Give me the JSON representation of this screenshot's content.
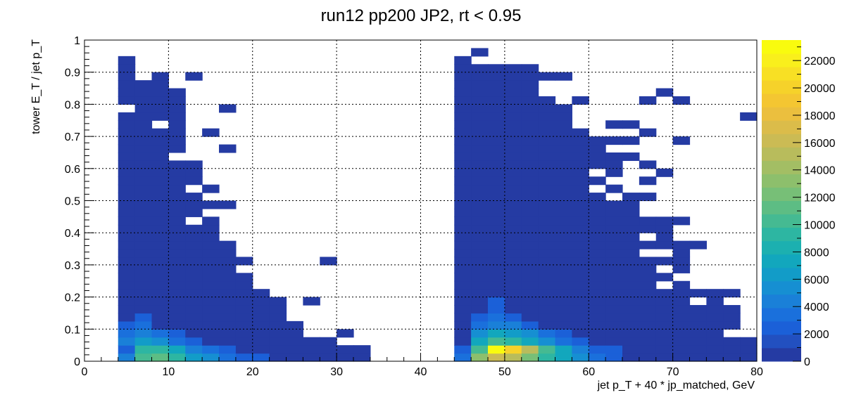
{
  "chart_data": {
    "type": "heatmap",
    "title": "run12 pp200 JP2, rt < 0.95",
    "xlabel": "jet p_T + 40 * jp_matched, GeV",
    "ylabel": "tower E_T / jet p_T",
    "xlim": [
      0,
      80
    ],
    "ylim": [
      0,
      1
    ],
    "x_ticks": [
      "0",
      "10",
      "20",
      "30",
      "40",
      "50",
      "60",
      "70",
      "80"
    ],
    "y_ticks": [
      "0",
      "0.1",
      "0.2",
      "0.3",
      "0.4",
      "0.5",
      "0.6",
      "0.7",
      "0.8",
      "0.9",
      "1"
    ],
    "grid": true,
    "colorbar": {
      "range": [
        0,
        23500
      ],
      "ticks": [
        "0",
        "2000",
        "4000",
        "6000",
        "8000",
        "10000",
        "12000",
        "14000",
        "16000",
        "18000",
        "20000",
        "22000"
      ],
      "palette": [
        "#253ba3",
        "#2250c0",
        "#1b60d8",
        "#1a70dc",
        "#1a80d8",
        "#168fd2",
        "#129cc8",
        "#12a7bd",
        "#1cb0b0",
        "#2db6a2",
        "#45ba92",
        "#5dbd84",
        "#77bf77",
        "#8dbf6c",
        "#a3be64",
        "#b8bc5c",
        "#cbbb54",
        "#dbbc4a",
        "#ebbf3e",
        "#f4c632",
        "#f6d22a",
        "#f8e024",
        "#f9ef1c",
        "#f9fb0e"
      ]
    },
    "bin_width_x": 2,
    "bin_width_y": 0.025,
    "columns": [
      {
        "x0": 4,
        "ymax": 0.95,
        "gaps": [
          0.775
        ]
      },
      {
        "x0": 6,
        "ymax": 0.875,
        "gaps": []
      },
      {
        "x0": 8,
        "ymax": 0.875,
        "gaps": [
          0.725
        ]
      },
      {
        "x0": 10,
        "ymax": 0.85,
        "gaps": [
          0.625
        ]
      },
      {
        "x0": 12,
        "ymax": 0.625,
        "gaps": [
          0.425,
          0.525
        ]
      },
      {
        "x0": 14,
        "ymax": 0.55,
        "gaps": [
          0.45,
          0.5
        ]
      },
      {
        "x0": 16,
        "ymax": 0.375,
        "gaps": []
      },
      {
        "x0": 18,
        "ymax": 0.275,
        "gaps": []
      },
      {
        "x0": 20,
        "ymax": 0.225,
        "gaps": []
      },
      {
        "x0": 22,
        "ymax": 0.2,
        "gaps": []
      },
      {
        "x0": 24,
        "ymax": 0.125,
        "gaps": []
      },
      {
        "x0": 26,
        "ymax": 0.075,
        "gaps": []
      },
      {
        "x0": 28,
        "ymax": 0.075,
        "gaps": []
      },
      {
        "x0": 30,
        "ymax": 0.05,
        "gaps": []
      },
      {
        "x0": 32,
        "ymax": 0.05,
        "gaps": []
      },
      {
        "x0": 44,
        "ymax": 0.95,
        "gaps": []
      },
      {
        "x0": 46,
        "ymax": 0.925,
        "gaps": []
      },
      {
        "x0": 48,
        "ymax": 0.925,
        "gaps": []
      },
      {
        "x0": 50,
        "ymax": 0.925,
        "gaps": []
      },
      {
        "x0": 52,
        "ymax": 0.9,
        "gaps": []
      },
      {
        "x0": 54,
        "ymax": 0.825,
        "gaps": []
      },
      {
        "x0": 56,
        "ymax": 0.8,
        "gaps": []
      },
      {
        "x0": 58,
        "ymax": 0.725,
        "gaps": []
      },
      {
        "x0": 60,
        "ymax": 0.7,
        "gaps": [
          0.525,
          0.575
        ]
      },
      {
        "x0": 62,
        "ymax": 0.65,
        "gaps": [
          0.5,
          0.55
        ]
      },
      {
        "x0": 64,
        "ymax": 0.525,
        "gaps": [
          0.425
        ]
      },
      {
        "x0": 66,
        "ymax": 0.45,
        "gaps": [
          0.325,
          0.375
        ]
      },
      {
        "x0": 68,
        "ymax": 0.45,
        "gaps": [
          0.225,
          0.275,
          0.325
        ]
      },
      {
        "x0": 70,
        "ymax": 0.35,
        "gaps": [
          0.25
        ]
      },
      {
        "x0": 72,
        "ymax": 0.225,
        "gaps": [
          0.175
        ]
      },
      {
        "x0": 74,
        "ymax": 0.2,
        "gaps": [
          0.15
        ]
      },
      {
        "x0": 76,
        "ymax": 0.175,
        "gaps": [
          0.075
        ]
      },
      {
        "x0": 78,
        "ymax": 0.075,
        "gaps": []
      }
    ],
    "islands": [
      {
        "x": 8,
        "y": 0.875
      },
      {
        "x": 12,
        "y": 0.875
      },
      {
        "x": 10,
        "y": 0.8
      },
      {
        "x": 16,
        "y": 0.775
      },
      {
        "x": 14,
        "y": 0.7
      },
      {
        "x": 16,
        "y": 0.65
      },
      {
        "x": 16,
        "y": 0.475
      },
      {
        "x": 14,
        "y": 0.375
      },
      {
        "x": 18,
        "y": 0.3
      },
      {
        "x": 22,
        "y": 0.175
      },
      {
        "x": 26,
        "y": 0.175
      },
      {
        "x": 28,
        "y": 0.3
      },
      {
        "x": 30,
        "y": 0.075
      },
      {
        "x": 46,
        "y": 0.95
      },
      {
        "x": 52,
        "y": 0.9
      },
      {
        "x": 54,
        "y": 0.875
      },
      {
        "x": 56,
        "y": 0.875
      },
      {
        "x": 58,
        "y": 0.8
      },
      {
        "x": 62,
        "y": 0.725
      },
      {
        "x": 64,
        "y": 0.725
      },
      {
        "x": 62,
        "y": 0.675
      },
      {
        "x": 64,
        "y": 0.675
      },
      {
        "x": 66,
        "y": 0.7
      },
      {
        "x": 66,
        "y": 0.6
      },
      {
        "x": 64,
        "y": 0.625
      },
      {
        "x": 64,
        "y": 0.5
      },
      {
        "x": 66,
        "y": 0.55
      },
      {
        "x": 66,
        "y": 0.5
      },
      {
        "x": 64,
        "y": 0.425
      },
      {
        "x": 68,
        "y": 0.425
      },
      {
        "x": 70,
        "y": 0.425
      },
      {
        "x": 68,
        "y": 0.575
      },
      {
        "x": 70,
        "y": 0.8
      },
      {
        "x": 66,
        "y": 0.8
      },
      {
        "x": 68,
        "y": 0.825
      },
      {
        "x": 70,
        "y": 0.675
      },
      {
        "x": 70,
        "y": 0.35
      },
      {
        "x": 72,
        "y": 0.35
      },
      {
        "x": 72,
        "y": 0.2
      },
      {
        "x": 74,
        "y": 0.2
      },
      {
        "x": 74,
        "y": 0.15
      },
      {
        "x": 76,
        "y": 0.15
      },
      {
        "x": 76,
        "y": 0.2
      },
      {
        "x": 78,
        "y": 0.75
      }
    ],
    "hot_cells": [
      {
        "x": 4,
        "y": 0.0,
        "v": 4000
      },
      {
        "x": 4,
        "y": 0.025,
        "v": 2000
      },
      {
        "x": 4,
        "y": 0.05,
        "v": 4500
      },
      {
        "x": 4,
        "y": 0.075,
        "v": 3500
      },
      {
        "x": 4,
        "y": 0.1,
        "v": 2200
      },
      {
        "x": 6,
        "y": 0.0,
        "v": 10500
      },
      {
        "x": 6,
        "y": 0.025,
        "v": 9500
      },
      {
        "x": 6,
        "y": 0.05,
        "v": 6500
      },
      {
        "x": 6,
        "y": 0.075,
        "v": 4500
      },
      {
        "x": 6,
        "y": 0.1,
        "v": 3000
      },
      {
        "x": 6,
        "y": 0.125,
        "v": 2000
      },
      {
        "x": 8,
        "y": 0.0,
        "v": 11000
      },
      {
        "x": 8,
        "y": 0.025,
        "v": 9000
      },
      {
        "x": 8,
        "y": 0.05,
        "v": 5500
      },
      {
        "x": 8,
        "y": 0.075,
        "v": 3000
      },
      {
        "x": 10,
        "y": 0.0,
        "v": 9000
      },
      {
        "x": 10,
        "y": 0.025,
        "v": 7000
      },
      {
        "x": 10,
        "y": 0.05,
        "v": 3500
      },
      {
        "x": 10,
        "y": 0.075,
        "v": 2000
      },
      {
        "x": 12,
        "y": 0.0,
        "v": 6500
      },
      {
        "x": 12,
        "y": 0.025,
        "v": 4500
      },
      {
        "x": 12,
        "y": 0.05,
        "v": 2200
      },
      {
        "x": 14,
        "y": 0.0,
        "v": 5000
      },
      {
        "x": 14,
        "y": 0.025,
        "v": 3000
      },
      {
        "x": 16,
        "y": 0.0,
        "v": 3500
      },
      {
        "x": 16,
        "y": 0.025,
        "v": 2200
      },
      {
        "x": 18,
        "y": 0.0,
        "v": 2500
      },
      {
        "x": 20,
        "y": 0.0,
        "v": 2000
      },
      {
        "x": 44,
        "y": 0.0,
        "v": 3500
      },
      {
        "x": 44,
        "y": 0.025,
        "v": 2500
      },
      {
        "x": 46,
        "y": 0.0,
        "v": 13000
      },
      {
        "x": 46,
        "y": 0.025,
        "v": 10000
      },
      {
        "x": 46,
        "y": 0.05,
        "v": 7000
      },
      {
        "x": 46,
        "y": 0.075,
        "v": 5000
      },
      {
        "x": 46,
        "y": 0.1,
        "v": 3500
      },
      {
        "x": 46,
        "y": 0.125,
        "v": 2200
      },
      {
        "x": 48,
        "y": 0.0,
        "v": 16000
      },
      {
        "x": 48,
        "y": 0.025,
        "v": 23500
      },
      {
        "x": 48,
        "y": 0.05,
        "v": 10000
      },
      {
        "x": 48,
        "y": 0.075,
        "v": 7000
      },
      {
        "x": 48,
        "y": 0.1,
        "v": 4500
      },
      {
        "x": 48,
        "y": 0.125,
        "v": 3000
      },
      {
        "x": 48,
        "y": 0.15,
        "v": 2200
      },
      {
        "x": 48,
        "y": 0.175,
        "v": 2000
      },
      {
        "x": 50,
        "y": 0.0,
        "v": 15000
      },
      {
        "x": 50,
        "y": 0.025,
        "v": 20500
      },
      {
        "x": 50,
        "y": 0.05,
        "v": 9500
      },
      {
        "x": 50,
        "y": 0.075,
        "v": 6000
      },
      {
        "x": 50,
        "y": 0.1,
        "v": 4000
      },
      {
        "x": 50,
        "y": 0.125,
        "v": 2200
      },
      {
        "x": 52,
        "y": 0.0,
        "v": 12000
      },
      {
        "x": 52,
        "y": 0.025,
        "v": 15000
      },
      {
        "x": 52,
        "y": 0.05,
        "v": 7500
      },
      {
        "x": 52,
        "y": 0.075,
        "v": 5000
      },
      {
        "x": 52,
        "y": 0.1,
        "v": 2500
      },
      {
        "x": 54,
        "y": 0.0,
        "v": 9000
      },
      {
        "x": 54,
        "y": 0.025,
        "v": 10000
      },
      {
        "x": 54,
        "y": 0.05,
        "v": 5500
      },
      {
        "x": 54,
        "y": 0.075,
        "v": 3500
      },
      {
        "x": 56,
        "y": 0.0,
        "v": 7000
      },
      {
        "x": 56,
        "y": 0.025,
        "v": 7000
      },
      {
        "x": 56,
        "y": 0.05,
        "v": 3500
      },
      {
        "x": 56,
        "y": 0.075,
        "v": 2000
      },
      {
        "x": 58,
        "y": 0.0,
        "v": 5000
      },
      {
        "x": 58,
        "y": 0.025,
        "v": 4500
      },
      {
        "x": 58,
        "y": 0.05,
        "v": 2200
      },
      {
        "x": 60,
        "y": 0.0,
        "v": 3500
      },
      {
        "x": 60,
        "y": 0.025,
        "v": 2500
      },
      {
        "x": 62,
        "y": 0.0,
        "v": 2200
      },
      {
        "x": 62,
        "y": 0.025,
        "v": 2000
      }
    ]
  }
}
